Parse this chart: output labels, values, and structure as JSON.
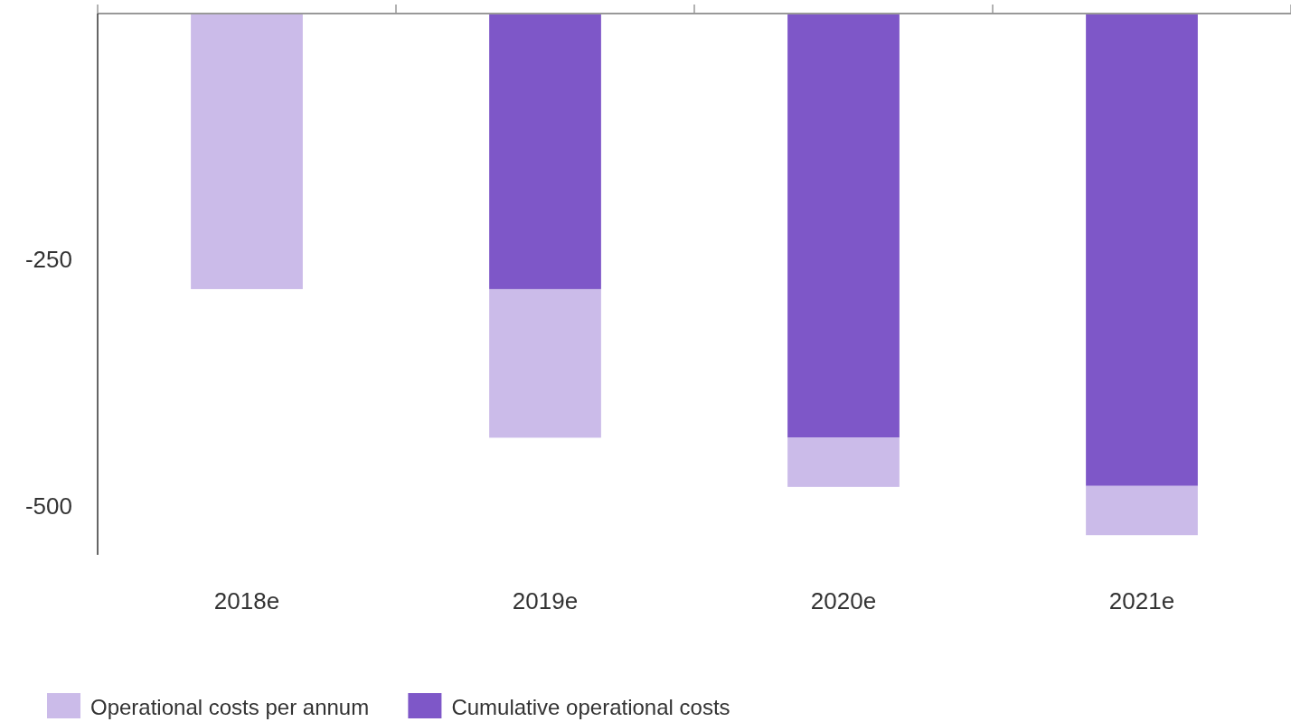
{
  "chart_data": {
    "type": "bar",
    "stacked": true,
    "categories": [
      "2018e",
      "2019e",
      "2020e",
      "2021e"
    ],
    "series": [
      {
        "name": "Cumulative operational costs",
        "color": "#7e57c8",
        "values": [
          null,
          -280,
          -431,
          -480
        ]
      },
      {
        "name": "Operational costs per annum",
        "color": "#cbbbe9",
        "values": [
          -280,
          -151,
          -50,
          -50
        ]
      }
    ],
    "ylim": [
      -550,
      0
    ],
    "yticks": [
      -250,
      -500
    ],
    "grid": false,
    "legend": "bottom left"
  }
}
